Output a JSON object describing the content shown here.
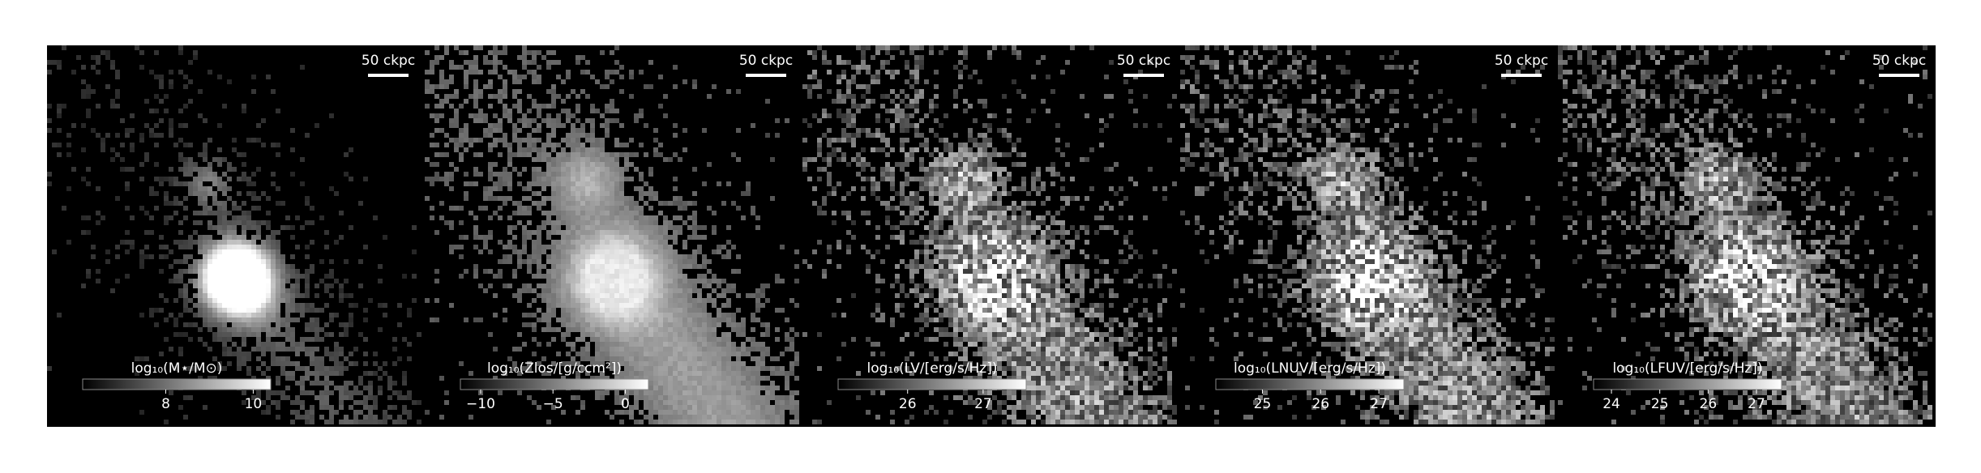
{
  "chart_data": [
    {
      "type": "image",
      "scale_label": "50 ckpc",
      "colorbar_label": "log₁₀(M⋆/M⊙)",
      "clim": [
        6.1,
        10.4
      ],
      "ticks": [
        8,
        10
      ]
    },
    {
      "type": "image",
      "scale_label": "50 ckpc",
      "colorbar_label": "log₁₀(Zlos/[g/ccm²])",
      "clim": [
        -11.4,
        1.6
      ],
      "ticks": [
        {
          "value": -10,
          "label": "−10"
        },
        {
          "value": -5,
          "label": "−5"
        },
        0
      ]
    },
    {
      "type": "image",
      "scale_label": "50 ckpc",
      "colorbar_label": "log₁₀(LV/[erg/s/Hz])",
      "clim": [
        25.08,
        27.57
      ],
      "ticks": [
        26,
        27
      ]
    },
    {
      "type": "image",
      "scale_label": "50 ckpc",
      "colorbar_label": "log₁₀(LNUV/[erg/s/Hz])",
      "clim": [
        24.2,
        27.43
      ],
      "ticks": [
        25,
        26,
        27
      ]
    },
    {
      "type": "image",
      "scale_label": "50 ckpc",
      "colorbar_label": "log₁₀(LFUV/[erg/s/Hz])",
      "clim": [
        23.63,
        27.52
      ],
      "ticks": [
        24,
        25,
        26,
        27
      ]
    }
  ]
}
